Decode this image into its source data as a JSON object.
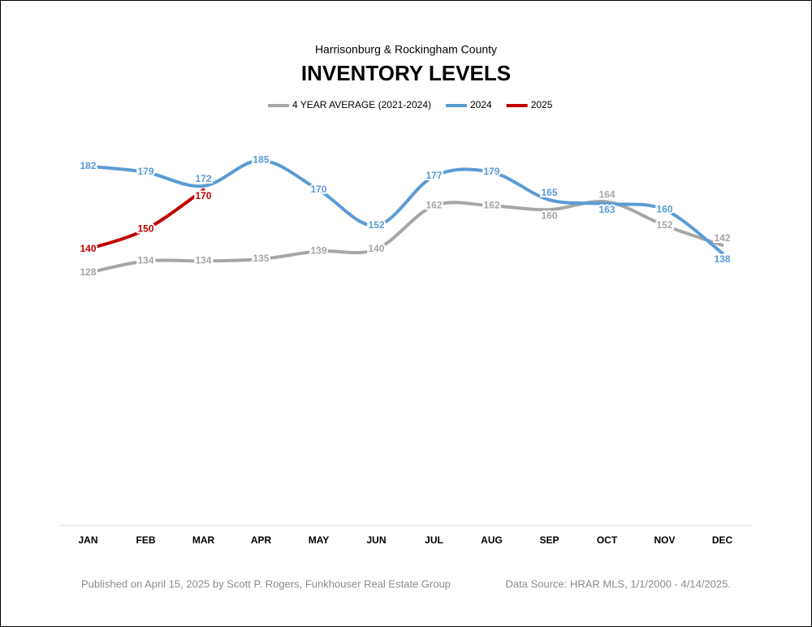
{
  "chart_data": {
    "type": "line",
    "subtitle": "Harrisonburg & Rockingham County",
    "title": "INVENTORY LEVELS",
    "categories": [
      "JAN",
      "FEB",
      "MAR",
      "APR",
      "MAY",
      "JUN",
      "JUL",
      "AUG",
      "SEP",
      "OCT",
      "NOV",
      "DEC"
    ],
    "series": [
      {
        "name": "4 YEAR AVERAGE (2021-2024)",
        "color": "#a6a6a6",
        "values": [
          128,
          134,
          134,
          135,
          139,
          140,
          162,
          162,
          160,
          164,
          152,
          142
        ]
      },
      {
        "name": "2024",
        "color": "#5b9bd5",
        "values": [
          182,
          179,
          172,
          185,
          170,
          152,
          177,
          179,
          165,
          163,
          160,
          138
        ]
      },
      {
        "name": "2025",
        "color": "#c00000",
        "values": [
          140,
          150,
          170,
          null,
          null,
          null,
          null,
          null,
          null,
          null,
          null,
          null
        ]
      }
    ],
    "ylim": [
      0,
      200
    ],
    "grid": false,
    "legend": "top",
    "footer_left": "Published on April 15, 2025 by Scott P. Rogers, Funkhouser Real Estate Group",
    "footer_right": "Data Source: HRAR MLS, 1/1/2000 - 4/14/2025."
  }
}
